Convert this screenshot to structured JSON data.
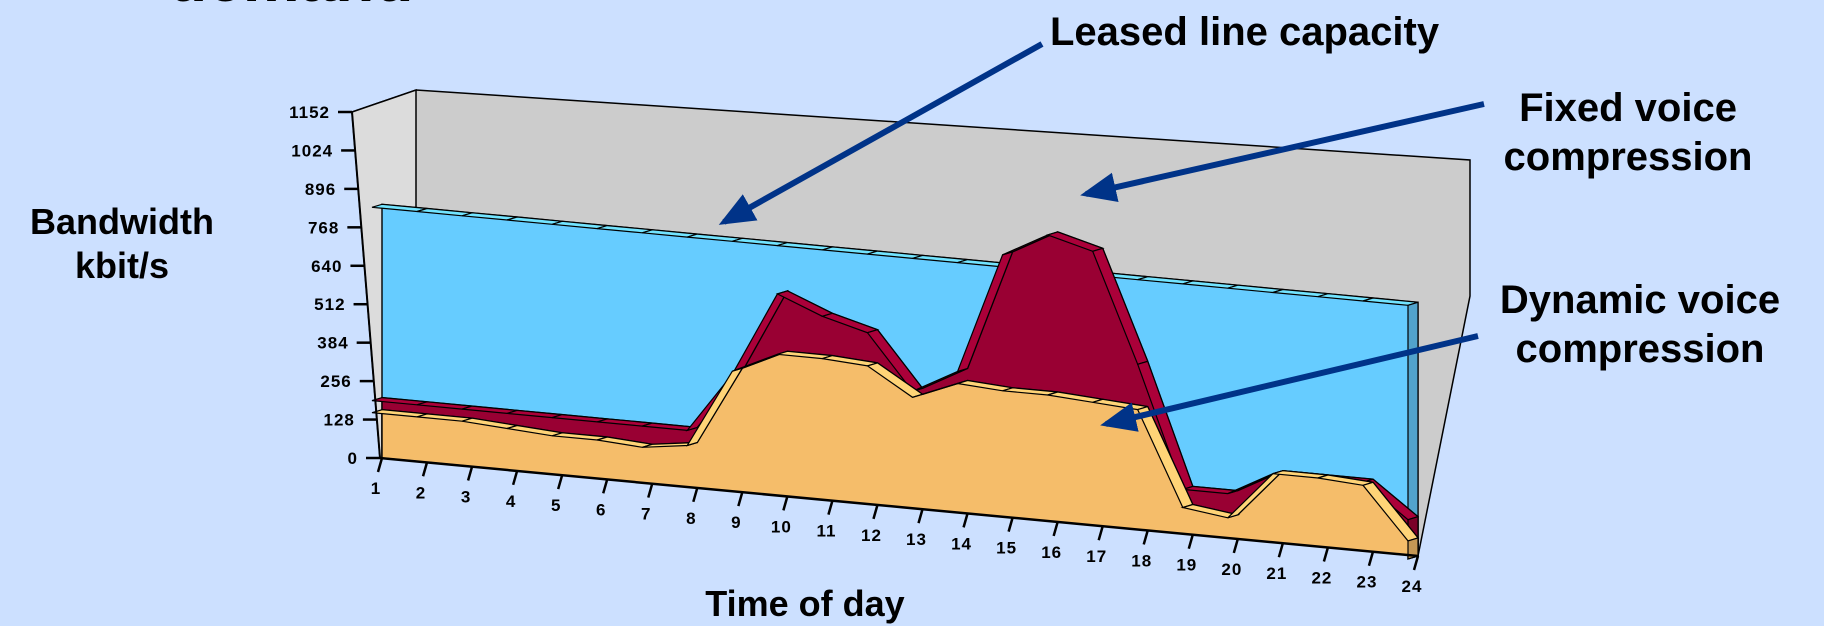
{
  "slide": {
    "title": "demand"
  },
  "chart_data": {
    "type": "area",
    "title": "",
    "xlabel": "Time of day",
    "ylabel": "Bandwidth\nkbit/s",
    "x": [
      "1",
      "2",
      "3",
      "4",
      "5",
      "6",
      "7",
      "8",
      "9",
      "10",
      "11",
      "12",
      "13",
      "14",
      "15",
      "16",
      "17",
      "18",
      "19",
      "20",
      "21",
      "22",
      "23",
      "24"
    ],
    "yticks": [
      0,
      128,
      256,
      384,
      512,
      640,
      768,
      896,
      1024,
      1152
    ],
    "ylim": [
      0,
      1152
    ],
    "series": [
      {
        "name": "Leased line capacity",
        "color": "#66ccff",
        "values": [
          840,
          840,
          840,
          840,
          840,
          840,
          840,
          840,
          840,
          840,
          840,
          840,
          840,
          840,
          840,
          840,
          840,
          840,
          840,
          840,
          840,
          840,
          840,
          840
        ]
      },
      {
        "name": "Fixed voice compression",
        "color": "#990033",
        "values": [
          200,
          200,
          200,
          200,
          200,
          200,
          200,
          200,
          400,
          680,
          620,
          580,
          400,
          480,
          880,
          960,
          920,
          560,
          160,
          160,
          240,
          240,
          240,
          130
        ]
      },
      {
        "name": "Dynamic voice compression",
        "color": "#f5bd6a",
        "values": [
          160,
          160,
          160,
          150,
          140,
          140,
          130,
          150,
          410,
          480,
          480,
          470,
          380,
          440,
          430,
          430,
          420,
          410,
          100,
          80,
          240,
          240,
          230,
          60
        ]
      }
    ],
    "grid": false,
    "legend": "none"
  },
  "colors": {
    "background": "#cce0ff",
    "wall": "#cccccc",
    "arrow": "#003388"
  }
}
